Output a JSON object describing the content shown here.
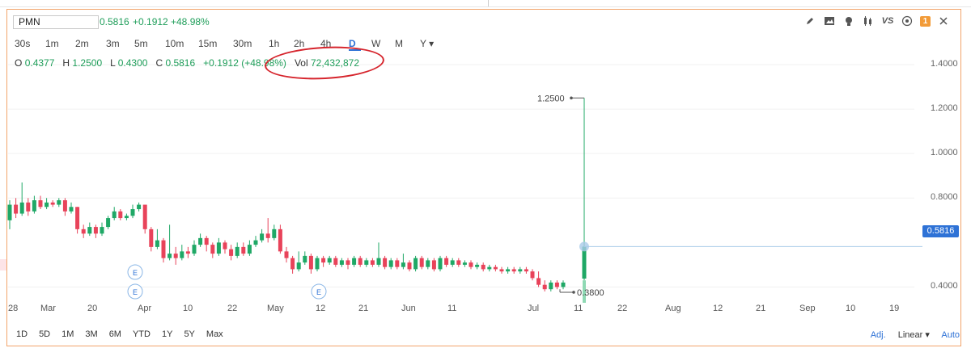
{
  "symbol": "PMN",
  "quote": {
    "price": "0.5816",
    "change": "+0.1912",
    "pct": "+48.98%"
  },
  "intervals": [
    "30s",
    "1m",
    "2m",
    "3m",
    "5m",
    "10m",
    "15m",
    "30m",
    "1h",
    "2h",
    "4h",
    "D",
    "W",
    "M",
    "Y ▾"
  ],
  "selected_interval": "D",
  "ohlc": {
    "o_label": "O",
    "o": "0.4377",
    "h_label": "H",
    "h": "1.2500",
    "l_label": "L",
    "l": "0.4300",
    "c_label": "C",
    "c": "0.5816",
    "change": "+0.1912 (+48.98%)",
    "vol_label": "Vol",
    "vol": "72,432,872"
  },
  "price_axis": [
    "1.4000",
    "1.2000",
    "1.0000",
    "0.8000",
    "0.4000"
  ],
  "current_price": "0.5816",
  "annotations": {
    "high": "1.2500",
    "low": "0.3800"
  },
  "date_axis": [
    "28",
    "Mar",
    "20",
    "Apr",
    "10",
    "22",
    "May",
    "12",
    "21",
    "Jun",
    "11",
    "Jul",
    "11",
    "22",
    "Aug",
    "12",
    "21",
    "Sep",
    "10",
    "19"
  ],
  "earnings_marker": "E",
  "ranges": [
    "1D",
    "5D",
    "1M",
    "3M",
    "6M",
    "YTD",
    "1Y",
    "5Y",
    "Max"
  ],
  "bottom_right": {
    "adj": "Adj.",
    "scale": "Linear ▾",
    "auto": "Auto"
  },
  "colors": {
    "up": "#1fa866",
    "down": "#e8435a",
    "accent": "#2e72d6",
    "border": "#f2a46b"
  },
  "toolbar_icons": [
    "pencil-icon",
    "image-icon",
    "bulb-icon",
    "candles-icon",
    "vs-icon",
    "settings-icon",
    "alert-icon"
  ],
  "chart_data": {
    "type": "candlestick",
    "ylim": [
      0.3,
      1.4
    ],
    "candles": [
      {
        "o": 0.7,
        "c": 0.77,
        "h": 0.79,
        "l": 0.66
      },
      {
        "o": 0.77,
        "c": 0.73,
        "h": 0.8,
        "l": 0.71
      },
      {
        "o": 0.73,
        "c": 0.78,
        "h": 0.87,
        "l": 0.72
      },
      {
        "o": 0.78,
        "c": 0.74,
        "h": 0.8,
        "l": 0.72
      },
      {
        "o": 0.74,
        "c": 0.79,
        "h": 0.81,
        "l": 0.73
      },
      {
        "o": 0.79,
        "c": 0.76,
        "h": 0.81,
        "l": 0.75
      },
      {
        "o": 0.76,
        "c": 0.78,
        "h": 0.8,
        "l": 0.75
      },
      {
        "o": 0.78,
        "c": 0.77,
        "h": 0.79,
        "l": 0.76
      },
      {
        "o": 0.77,
        "c": 0.79,
        "h": 0.8,
        "l": 0.76
      },
      {
        "o": 0.79,
        "c": 0.74,
        "h": 0.8,
        "l": 0.72
      },
      {
        "o": 0.74,
        "c": 0.76,
        "h": 0.78,
        "l": 0.73
      },
      {
        "o": 0.76,
        "c": 0.66,
        "h": 0.76,
        "l": 0.64
      },
      {
        "o": 0.66,
        "c": 0.64,
        "h": 0.68,
        "l": 0.62
      },
      {
        "o": 0.64,
        "c": 0.67,
        "h": 0.69,
        "l": 0.63
      },
      {
        "o": 0.67,
        "c": 0.64,
        "h": 0.68,
        "l": 0.62
      },
      {
        "o": 0.64,
        "c": 0.67,
        "h": 0.69,
        "l": 0.63
      },
      {
        "o": 0.67,
        "c": 0.71,
        "h": 0.72,
        "l": 0.66
      },
      {
        "o": 0.71,
        "c": 0.74,
        "h": 0.76,
        "l": 0.7
      },
      {
        "o": 0.74,
        "c": 0.71,
        "h": 0.75,
        "l": 0.7
      },
      {
        "o": 0.71,
        "c": 0.72,
        "h": 0.73,
        "l": 0.7
      },
      {
        "o": 0.72,
        "c": 0.75,
        "h": 0.77,
        "l": 0.71
      },
      {
        "o": 0.75,
        "c": 0.77,
        "h": 0.78,
        "l": 0.74
      },
      {
        "o": 0.77,
        "c": 0.66,
        "h": 0.77,
        "l": 0.64
      },
      {
        "o": 0.66,
        "c": 0.58,
        "h": 0.67,
        "l": 0.56
      },
      {
        "o": 0.58,
        "c": 0.61,
        "h": 0.66,
        "l": 0.57
      },
      {
        "o": 0.61,
        "c": 0.53,
        "h": 0.62,
        "l": 0.51
      },
      {
        "o": 0.53,
        "c": 0.55,
        "h": 0.68,
        "l": 0.52
      },
      {
        "o": 0.55,
        "c": 0.53,
        "h": 0.58,
        "l": 0.5
      },
      {
        "o": 0.53,
        "c": 0.56,
        "h": 0.59,
        "l": 0.52
      },
      {
        "o": 0.56,
        "c": 0.55,
        "h": 0.58,
        "l": 0.53
      },
      {
        "o": 0.55,
        "c": 0.59,
        "h": 0.61,
        "l": 0.54
      },
      {
        "o": 0.59,
        "c": 0.62,
        "h": 0.64,
        "l": 0.58
      },
      {
        "o": 0.62,
        "c": 0.59,
        "h": 0.63,
        "l": 0.56
      },
      {
        "o": 0.59,
        "c": 0.55,
        "h": 0.6,
        "l": 0.53
      },
      {
        "o": 0.55,
        "c": 0.6,
        "h": 0.62,
        "l": 0.54
      },
      {
        "o": 0.6,
        "c": 0.57,
        "h": 0.61,
        "l": 0.55
      },
      {
        "o": 0.57,
        "c": 0.54,
        "h": 0.59,
        "l": 0.52
      },
      {
        "o": 0.54,
        "c": 0.58,
        "h": 0.6,
        "l": 0.53
      },
      {
        "o": 0.58,
        "c": 0.55,
        "h": 0.6,
        "l": 0.54
      },
      {
        "o": 0.55,
        "c": 0.59,
        "h": 0.61,
        "l": 0.54
      },
      {
        "o": 0.59,
        "c": 0.61,
        "h": 0.63,
        "l": 0.58
      },
      {
        "o": 0.61,
        "c": 0.64,
        "h": 0.66,
        "l": 0.6
      },
      {
        "o": 0.64,
        "c": 0.62,
        "h": 0.71,
        "l": 0.6
      },
      {
        "o": 0.62,
        "c": 0.66,
        "h": 0.68,
        "l": 0.61
      },
      {
        "o": 0.66,
        "c": 0.56,
        "h": 0.68,
        "l": 0.55
      },
      {
        "o": 0.56,
        "c": 0.53,
        "h": 0.58,
        "l": 0.51
      },
      {
        "o": 0.53,
        "c": 0.48,
        "h": 0.54,
        "l": 0.46
      },
      {
        "o": 0.48,
        "c": 0.51,
        "h": 0.56,
        "l": 0.47
      },
      {
        "o": 0.51,
        "c": 0.54,
        "h": 0.56,
        "l": 0.5
      },
      {
        "o": 0.54,
        "c": 0.48,
        "h": 0.55,
        "l": 0.46
      },
      {
        "o": 0.48,
        "c": 0.53,
        "h": 0.54,
        "l": 0.47
      },
      {
        "o": 0.53,
        "c": 0.51,
        "h": 0.54,
        "l": 0.49
      },
      {
        "o": 0.51,
        "c": 0.53,
        "h": 0.54,
        "l": 0.5
      },
      {
        "o": 0.53,
        "c": 0.5,
        "h": 0.54,
        "l": 0.49
      },
      {
        "o": 0.5,
        "c": 0.52,
        "h": 0.53,
        "l": 0.49
      },
      {
        "o": 0.52,
        "c": 0.5,
        "h": 0.53,
        "l": 0.48
      },
      {
        "o": 0.5,
        "c": 0.53,
        "h": 0.54,
        "l": 0.49
      },
      {
        "o": 0.53,
        "c": 0.5,
        "h": 0.54,
        "l": 0.49
      },
      {
        "o": 0.5,
        "c": 0.52,
        "h": 0.53,
        "l": 0.49
      },
      {
        "o": 0.52,
        "c": 0.5,
        "h": 0.53,
        "l": 0.49
      },
      {
        "o": 0.5,
        "c": 0.53,
        "h": 0.6,
        "l": 0.49
      },
      {
        "o": 0.53,
        "c": 0.49,
        "h": 0.54,
        "l": 0.48
      },
      {
        "o": 0.49,
        "c": 0.52,
        "h": 0.53,
        "l": 0.48
      },
      {
        "o": 0.52,
        "c": 0.49,
        "h": 0.53,
        "l": 0.48
      },
      {
        "o": 0.49,
        "c": 0.51,
        "h": 0.55,
        "l": 0.48
      },
      {
        "o": 0.51,
        "c": 0.48,
        "h": 0.52,
        "l": 0.47
      },
      {
        "o": 0.48,
        "c": 0.53,
        "h": 0.54,
        "l": 0.47
      },
      {
        "o": 0.53,
        "c": 0.49,
        "h": 0.54,
        "l": 0.48
      },
      {
        "o": 0.49,
        "c": 0.52,
        "h": 0.53,
        "l": 0.48
      },
      {
        "o": 0.52,
        "c": 0.48,
        "h": 0.53,
        "l": 0.47
      },
      {
        "o": 0.48,
        "c": 0.53,
        "h": 0.54,
        "l": 0.47
      },
      {
        "o": 0.53,
        "c": 0.5,
        "h": 0.54,
        "l": 0.49
      },
      {
        "o": 0.5,
        "c": 0.52,
        "h": 0.53,
        "l": 0.49
      },
      {
        "o": 0.52,
        "c": 0.5,
        "h": 0.53,
        "l": 0.49
      },
      {
        "o": 0.5,
        "c": 0.51,
        "h": 0.52,
        "l": 0.49
      },
      {
        "o": 0.51,
        "c": 0.49,
        "h": 0.52,
        "l": 0.48
      },
      {
        "o": 0.49,
        "c": 0.5,
        "h": 0.51,
        "l": 0.48
      },
      {
        "o": 0.5,
        "c": 0.48,
        "h": 0.51,
        "l": 0.47
      },
      {
        "o": 0.48,
        "c": 0.49,
        "h": 0.5,
        "l": 0.47
      },
      {
        "o": 0.49,
        "c": 0.48,
        "h": 0.5,
        "l": 0.47
      },
      {
        "o": 0.48,
        "c": 0.47,
        "h": 0.49,
        "l": 0.46
      },
      {
        "o": 0.47,
        "c": 0.48,
        "h": 0.49,
        "l": 0.46
      },
      {
        "o": 0.48,
        "c": 0.47,
        "h": 0.49,
        "l": 0.46
      },
      {
        "o": 0.47,
        "c": 0.48,
        "h": 0.49,
        "l": 0.46
      },
      {
        "o": 0.48,
        "c": 0.47,
        "h": 0.49,
        "l": 0.46
      },
      {
        "o": 0.47,
        "c": 0.44,
        "h": 0.48,
        "l": 0.43
      },
      {
        "o": 0.44,
        "c": 0.41,
        "h": 0.47,
        "l": 0.4
      },
      {
        "o": 0.41,
        "c": 0.39,
        "h": 0.43,
        "l": 0.38
      },
      {
        "o": 0.39,
        "c": 0.42,
        "h": 0.43,
        "l": 0.38
      },
      {
        "o": 0.42,
        "c": 0.4,
        "h": 0.43,
        "l": 0.39
      },
      {
        "o": 0.4,
        "c": 0.42,
        "h": 0.43,
        "l": 0.39
      },
      {
        "o": 0.4377,
        "c": 0.5816,
        "h": 1.25,
        "l": 0.43
      }
    ]
  }
}
